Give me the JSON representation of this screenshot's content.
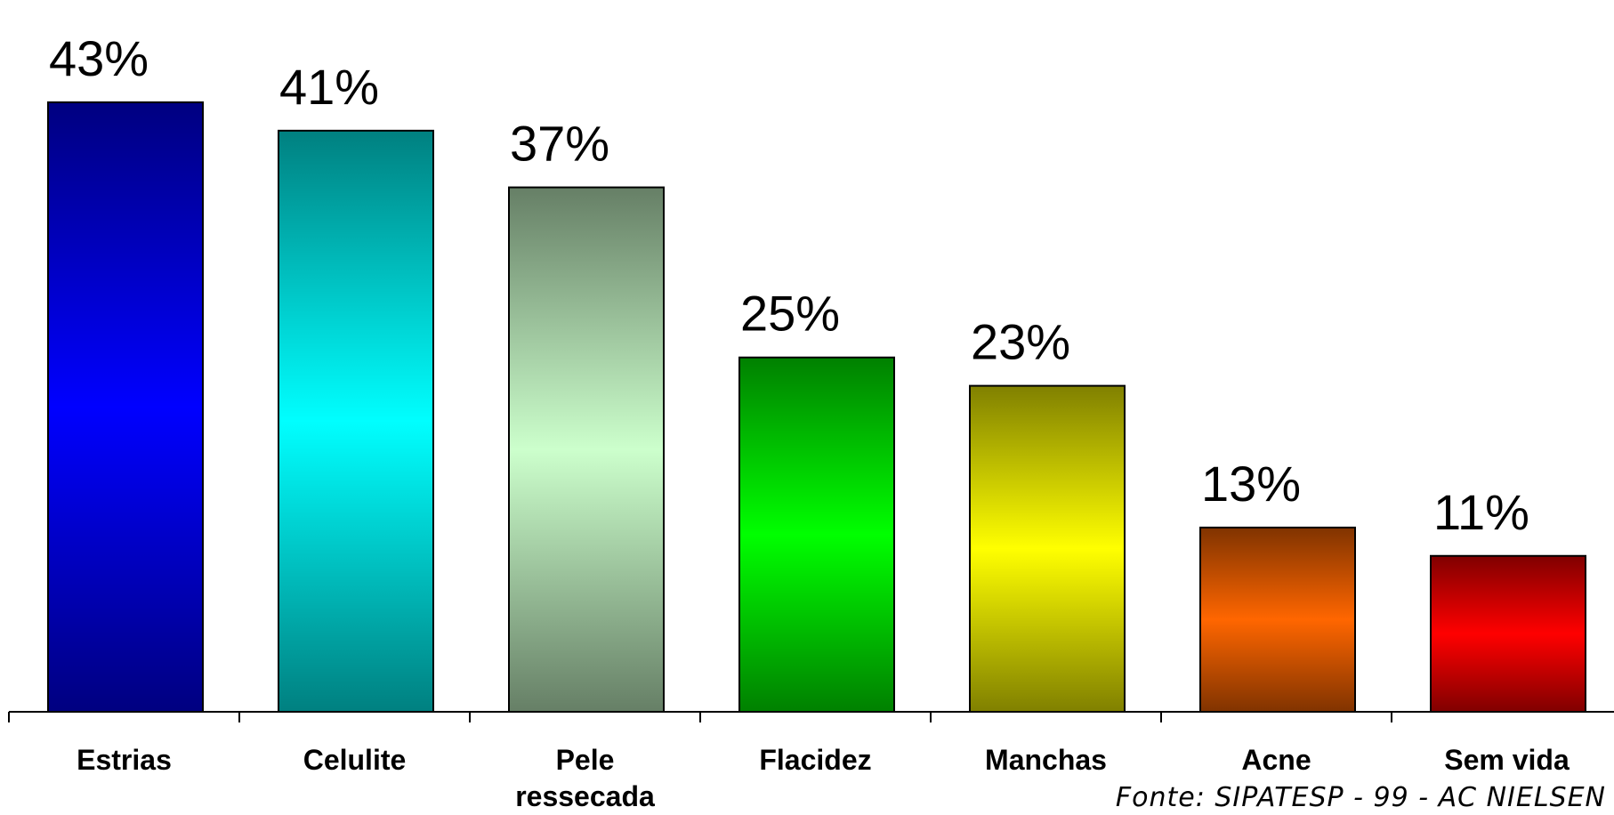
{
  "chart_data": {
    "type": "bar",
    "categories": [
      "Estrias",
      "Celulite",
      "Pele ressecada",
      "Flacidez",
      "Manchas",
      "Acne",
      "Sem vida"
    ],
    "category_lines": [
      [
        "Estrias"
      ],
      [
        "Celulite"
      ],
      [
        "Pele",
        "ressecada"
      ],
      [
        "Flacidez"
      ],
      [
        "Manchas"
      ],
      [
        "Acne"
      ],
      [
        "Sem vida"
      ]
    ],
    "values": [
      43,
      41,
      37,
      25,
      23,
      13,
      11
    ],
    "value_labels": [
      "43%",
      "41%",
      "37%",
      "25%",
      "23%",
      "13%",
      "11%"
    ],
    "ylim": [
      0,
      43
    ],
    "title": "",
    "xlabel": "",
    "ylabel": "",
    "grid": false,
    "legend": "none",
    "source": "Fonte: SIPATESP - 99 - AC NIELSEN",
    "bar_colors": [
      {
        "edge": "#000080",
        "mid": "#0000ff"
      },
      {
        "edge": "#008080",
        "mid": "#00ffff"
      },
      {
        "edge": "#667f66",
        "mid": "#ccffcc"
      },
      {
        "edge": "#008000",
        "mid": "#00ff00"
      },
      {
        "edge": "#808000",
        "mid": "#ffff00"
      },
      {
        "edge": "#803300",
        "mid": "#ff6600"
      },
      {
        "edge": "#800000",
        "mid": "#ff0000"
      }
    ]
  }
}
